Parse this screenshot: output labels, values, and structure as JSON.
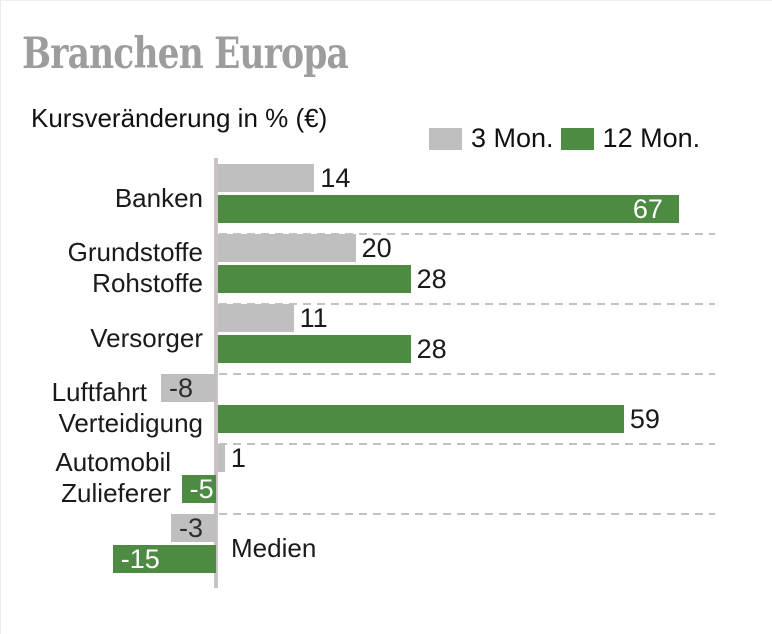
{
  "title": "Branchen Europa",
  "subtitle": "Kursveränderung in % (€)",
  "legend": {
    "position": "top-right",
    "items": [
      {
        "label": "3 Mon.",
        "color": "#bfbfbf"
      },
      {
        "label": "12 Mon.",
        "color": "#4e8b42"
      }
    ]
  },
  "colors": {
    "title": "#9d9d9d",
    "text": "#1a1a1a",
    "bar_gray": "#bfbfbf",
    "bar_green": "#4e8b42",
    "axis_line": "#c9c2c2",
    "separator": "#c7c0c0",
    "value_on_green": "#ffffff",
    "value_on_gray": "#2d2d2d"
  },
  "chart_data": {
    "type": "bar",
    "orientation": "horizontal",
    "title": "Branchen Europa",
    "subtitle": "Kursveränderung in % (€)",
    "value_unit": "% (€)",
    "categories": [
      {
        "lines": [
          "Banken"
        ]
      },
      {
        "lines": [
          "Grundstoffe",
          "Rohstoffe"
        ]
      },
      {
        "lines": [
          "Versorger"
        ]
      },
      {
        "lines": [
          "Luftfahrt",
          "Verteidigung"
        ]
      },
      {
        "lines": [
          "Automobil",
          "Zulieferer"
        ]
      },
      {
        "lines": [
          "Medien"
        ]
      }
    ],
    "series": [
      {
        "name": "3 Mon.",
        "color": "#bfbfbf",
        "values": [
          14,
          20,
          11,
          -8,
          1,
          -3
        ]
      },
      {
        "name": "12 Mon.",
        "color": "#4e8b42",
        "values": [
          67,
          28,
          28,
          59,
          -5,
          -15
        ]
      }
    ],
    "axis": {
      "zero_line": true,
      "gridlines": "dashed-between-groups",
      "x_min": -15,
      "x_max": 67
    },
    "legend_position": "top-right"
  }
}
